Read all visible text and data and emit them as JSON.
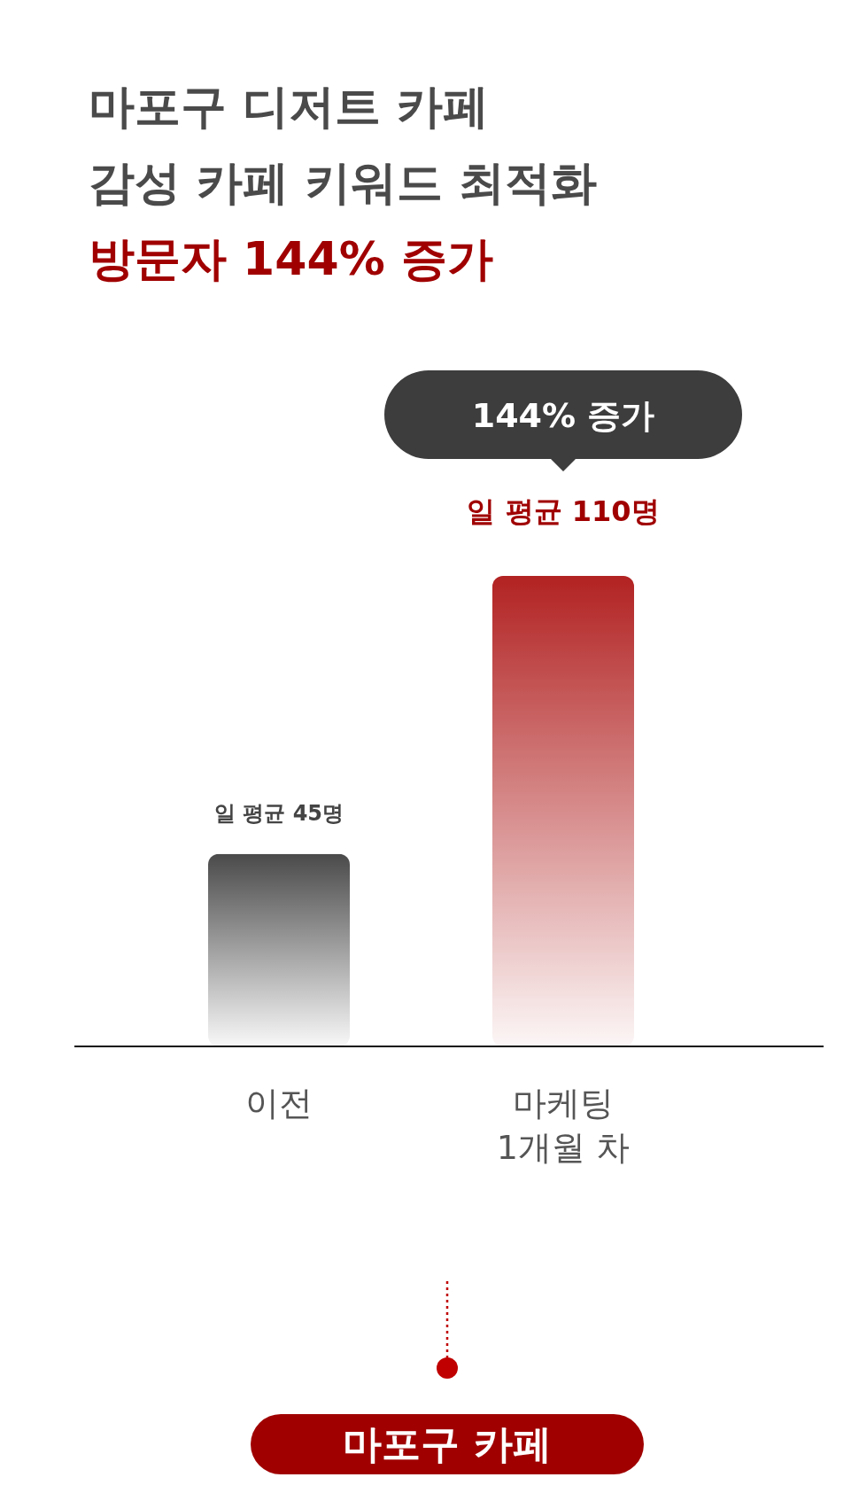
{
  "chart_data": {
    "type": "bar",
    "title": "마포구 디저트 카페\n감성 카페 키워드 최적화",
    "subtitle": "방문자 144% 증가",
    "categories": [
      "이전",
      "마케팅\n1개월 차"
    ],
    "values": [
      45,
      110
    ],
    "colors": [
      "#4a4a4a",
      "#b22222"
    ],
    "value_labels": [
      "일 평균 45명",
      "일 평균 110명"
    ],
    "annotations": [
      "144% 증가",
      "마포구 카페"
    ]
  }
}
